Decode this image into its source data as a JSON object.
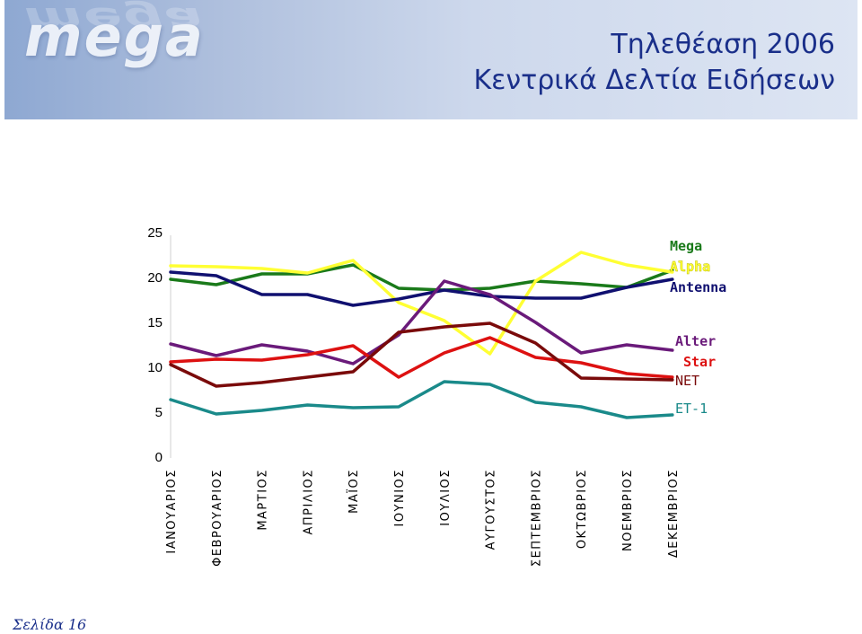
{
  "header": {
    "logo": "mega",
    "title_line1": "Τηλεθέαση  2006",
    "title_line2": "Κεντρικά Δελτία Ειδήσεων"
  },
  "chart_data": {
    "type": "line",
    "ylim": [
      0,
      25
    ],
    "yticks": [
      0,
      5,
      10,
      15,
      20,
      25
    ],
    "grid": false,
    "categories": [
      "ΙΑΝΟΥΑΡΙΟΣ",
      "ΦΕΒΡΟΥΑΡΙΟΣ",
      "ΜΑΡΤΙΟΣ",
      "ΑΠΡΙΛΙΟΣ",
      "ΜΑΪΟΣ",
      "ΙΟΥΝΙΟΣ",
      "ΙΟΥΛΙΟΣ",
      "ΑΥΓΟΥΣΤΟΣ",
      "ΣΕΠΤΕΜΒΡΙΟΣ",
      "ΟΚΤΩΒΡΙΟΣ",
      "ΝΟΕΜΒΡΙΟΣ",
      "ΔΕΚΕΜΒΡΙΟΣ"
    ],
    "series": [
      {
        "name": "Mega",
        "color": "#1a7a1a",
        "values": [
          19.8,
          19.2,
          20.4,
          20.4,
          21.4,
          18.8,
          18.6,
          18.8,
          19.6,
          19.3,
          18.9,
          20.8
        ]
      },
      {
        "name": "Alpha",
        "color": "#ffff33",
        "values": [
          21.3,
          21.2,
          21.0,
          20.5,
          21.9,
          17.2,
          15.2,
          11.5,
          19.6,
          22.8,
          21.4,
          20.6
        ]
      },
      {
        "name": "Antenna",
        "color": "#101070",
        "values": [
          20.6,
          20.2,
          18.1,
          18.1,
          16.9,
          17.6,
          18.6,
          17.9,
          17.7,
          17.7,
          18.9,
          19.8
        ]
      },
      {
        "name": "Alter",
        "color": "#6a1a7a",
        "values": [
          12.6,
          11.3,
          12.5,
          11.8,
          10.4,
          13.6,
          19.6,
          18.1,
          15.0,
          11.6,
          12.5,
          11.9
        ]
      },
      {
        "name": "Star",
        "color": "#dd1111",
        "values": [
          10.6,
          10.9,
          10.8,
          11.4,
          12.4,
          8.9,
          11.6,
          13.3,
          11.1,
          10.5,
          9.3,
          8.9
        ]
      },
      {
        "name": "NET",
        "color": "#7a0a0a",
        "values": [
          10.3,
          7.9,
          8.3,
          8.9,
          9.5,
          13.9,
          14.5,
          14.9,
          12.7,
          8.8,
          8.7,
          8.6
        ]
      },
      {
        "name": "ET-1",
        "color": "#1a8a8a",
        "values": [
          6.4,
          4.8,
          5.2,
          5.8,
          5.5,
          5.6,
          8.4,
          8.1,
          6.1,
          5.6,
          4.4,
          4.7
        ]
      }
    ]
  },
  "footer": {
    "page_label": "Σελίδα 16"
  }
}
